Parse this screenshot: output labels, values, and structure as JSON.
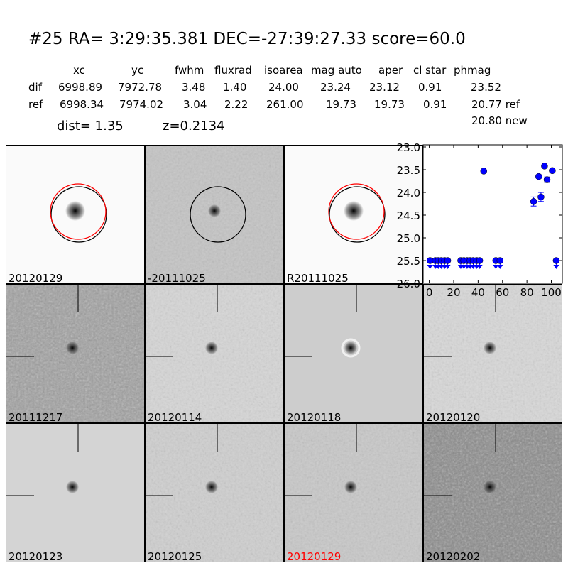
{
  "header": {
    "title": "#25   RA= 3:29:35.381 DEC=-27:39:27.33      score=60.0"
  },
  "table": {
    "columns": [
      "xc",
      "yc",
      "fwhm",
      "fluxrad",
      "isoarea",
      "mag auto",
      "aper",
      "cl star",
      "phmag"
    ],
    "rows": [
      {
        "label": "dif",
        "values": [
          "6998.89",
          "7972.78",
          "3.48",
          "1.40",
          "24.00",
          "23.24",
          "23.12",
          "0.91",
          "23.52"
        ]
      },
      {
        "label": "ref",
        "values": [
          "6998.34",
          "7974.02",
          "3.04",
          "2.22",
          "261.00",
          "19.73",
          "19.73",
          "0.91",
          "20.77 ref"
        ]
      }
    ],
    "extra": "20.80 new",
    "dist": "dist=  1.35",
    "z": "z=0.2134"
  },
  "panels": [
    {
      "label": "20120129",
      "bg": "#fafafa",
      "noise": 0
    },
    {
      "label": "-20111025",
      "bg": "#c4c4c4",
      "noise": 1
    },
    {
      "label": "R20111025",
      "bg": "#fafafa",
      "noise": 0
    },
    {
      "label": "20111217",
      "bg": "#a0a0a0",
      "noise": 2
    },
    {
      "label": "20120114",
      "bg": "#d6d6d6",
      "noise": 1
    },
    {
      "label": "20120118",
      "bg": "#cdcdcd",
      "noise": 0
    },
    {
      "label": "20120120",
      "bg": "#d8d8d8",
      "noise": 1
    },
    {
      "label": "20120123",
      "bg": "#d4d4d4",
      "noise": 0
    },
    {
      "label": "20120125",
      "bg": "#cfcfcf",
      "noise": 1
    },
    {
      "label": "20120129",
      "bg": "#c8c8c8",
      "noise": 1,
      "color": "#ff0000"
    },
    {
      "label": "20120202",
      "bg": "#8a8a8a",
      "noise": 2
    }
  ],
  "chart_data": {
    "type": "scatter",
    "xlim": [
      -5,
      109
    ],
    "ylim": [
      26.0,
      23.0
    ],
    "y_inverted": true,
    "xticks": [
      "0",
      "20",
      "40",
      "60",
      "80",
      "100"
    ],
    "yticks": [
      "23.0",
      "23.5",
      "24.0",
      "24.5",
      "25.0",
      "25.5",
      "26.0"
    ],
    "color": "#0000ff",
    "upper_limits": {
      "y": 25.5,
      "x": [
        0.6,
        5,
        7.4,
        9.9,
        12.6,
        15.1,
        25.8,
        28.3,
        31,
        33.5,
        36,
        38.8,
        41.3,
        54.5,
        58,
        104
      ]
    },
    "detections": [
      {
        "x": 44.6,
        "y": 23.53,
        "err": 0.02
      },
      {
        "x": 85.5,
        "y": 24.2,
        "err": 0.1
      },
      {
        "x": 89.7,
        "y": 23.65,
        "err": 0.04
      },
      {
        "x": 91.5,
        "y": 24.1,
        "err": 0.1
      },
      {
        "x": 94.4,
        "y": 23.42,
        "err": 0.03
      },
      {
        "x": 96.5,
        "y": 23.72,
        "err": 0.06
      },
      {
        "x": 100.8,
        "y": 23.52,
        "err": 0.03
      }
    ]
  }
}
